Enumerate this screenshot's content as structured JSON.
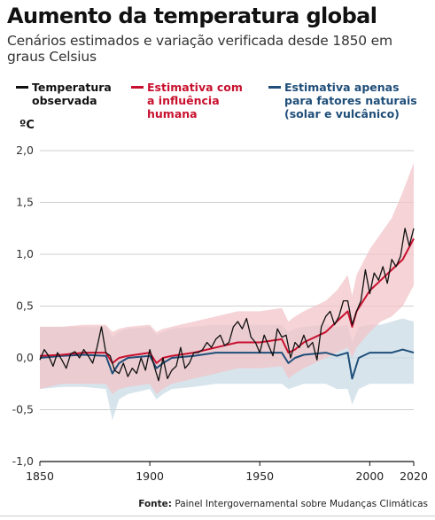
{
  "header": {
    "title": "Aumento da temperatura global",
    "subtitle": "Cenários estimados e variação verificada desde 1850 em graus Celsius"
  },
  "legend": [
    {
      "label": "Temperatura observada",
      "color": "#111111"
    },
    {
      "label": "Estimativa com a influência humana",
      "color": "#c8102e"
    },
    {
      "label": "Estimativa apenas para fatores naturais (solar e vulcânico)",
      "color": "#1f4e79"
    }
  ],
  "source": {
    "prefix": "Fonte:",
    "text": "Painel Intergovernamental sobre Mudanças Climáticas"
  },
  "colors": {
    "observed": "#111111",
    "human": "#c8102e",
    "human_band": "#f2c4c8",
    "natural": "#1f4e79",
    "natural_band": "#c9dbe6",
    "grid": "#cfcfcf"
  },
  "chart_data": {
    "type": "line",
    "ylabel": "ºC",
    "xlim": [
      1850,
      2020
    ],
    "ylim": [
      -1.0,
      2.0
    ],
    "x_ticks": [
      1850,
      1900,
      1950,
      2000,
      2020
    ],
    "y_ticks": [
      2.0,
      1.5,
      1.0,
      0.5,
      0.0,
      -0.5,
      -1.0
    ],
    "y_tick_labels": [
      "2,0",
      "1,5",
      "1,0",
      "0,5",
      "0,0",
      "-0,5",
      "-1,0"
    ],
    "grid": true,
    "legend_position": "top",
    "series": [
      {
        "name": "Temperatura observada",
        "x": [
          1850,
          1852,
          1854,
          1856,
          1858,
          1860,
          1862,
          1864,
          1866,
          1868,
          1870,
          1872,
          1874,
          1876,
          1878,
          1880,
          1882,
          1884,
          1886,
          1888,
          1890,
          1892,
          1894,
          1896,
          1898,
          1900,
          1902,
          1904,
          1906,
          1908,
          1910,
          1912,
          1914,
          1916,
          1918,
          1920,
          1922,
          1924,
          1926,
          1928,
          1930,
          1932,
          1934,
          1936,
          1938,
          1940,
          1942,
          1944,
          1946,
          1948,
          1950,
          1952,
          1954,
          1956,
          1958,
          1960,
          1962,
          1964,
          1966,
          1968,
          1970,
          1972,
          1974,
          1976,
          1978,
          1980,
          1982,
          1984,
          1986,
          1988,
          1990,
          1992,
          1994,
          1996,
          1998,
          2000,
          2002,
          2004,
          2006,
          2008,
          2010,
          2012,
          2014,
          2016,
          2018,
          2020
        ],
        "values": [
          -0.02,
          0.08,
          0.02,
          -0.08,
          0.05,
          -0.02,
          -0.1,
          0.04,
          0.06,
          0.0,
          0.08,
          0.02,
          -0.05,
          0.1,
          0.3,
          0.05,
          0.02,
          -0.12,
          -0.15,
          -0.05,
          -0.18,
          -0.1,
          -0.15,
          0.0,
          -0.12,
          0.08,
          -0.08,
          -0.22,
          0.0,
          -0.2,
          -0.12,
          -0.08,
          0.1,
          -0.1,
          -0.05,
          0.05,
          0.05,
          0.08,
          0.15,
          0.1,
          0.18,
          0.22,
          0.12,
          0.15,
          0.3,
          0.35,
          0.28,
          0.38,
          0.2,
          0.15,
          0.05,
          0.22,
          0.12,
          0.02,
          0.28,
          0.2,
          0.22,
          0.0,
          0.15,
          0.1,
          0.22,
          0.1,
          0.15,
          -0.02,
          0.3,
          0.4,
          0.45,
          0.32,
          0.4,
          0.55,
          0.55,
          0.32,
          0.45,
          0.55,
          0.85,
          0.62,
          0.82,
          0.75,
          0.88,
          0.72,
          0.95,
          0.88,
          0.98,
          1.25,
          1.08,
          1.25
        ]
      },
      {
        "name": "Estimativa com a influência humana",
        "x": [
          1850,
          1860,
          1870,
          1880,
          1883,
          1886,
          1890,
          1900,
          1903,
          1906,
          1910,
          1920,
          1930,
          1940,
          1950,
          1960,
          1963,
          1966,
          1970,
          1980,
          1985,
          1990,
          1992,
          1994,
          2000,
          2005,
          2010,
          2015,
          2020
        ],
        "values": [
          0.02,
          0.03,
          0.05,
          0.05,
          -0.05,
          0.0,
          0.02,
          0.05,
          -0.05,
          0.0,
          0.02,
          0.05,
          0.1,
          0.15,
          0.15,
          0.18,
          0.05,
          0.08,
          0.15,
          0.25,
          0.35,
          0.45,
          0.3,
          0.45,
          0.65,
          0.75,
          0.85,
          0.95,
          1.15
        ],
        "band_lower": [
          -0.3,
          -0.25,
          -0.25,
          -0.25,
          -0.35,
          -0.3,
          -0.28,
          -0.25,
          -0.35,
          -0.3,
          -0.25,
          -0.2,
          -0.15,
          -0.1,
          -0.1,
          -0.08,
          -0.2,
          -0.15,
          -0.1,
          0.0,
          0.05,
          0.1,
          0.0,
          0.1,
          0.25,
          0.35,
          0.4,
          0.5,
          0.7
        ],
        "band_upper": [
          0.3,
          0.3,
          0.32,
          0.32,
          0.25,
          0.28,
          0.3,
          0.32,
          0.25,
          0.28,
          0.3,
          0.35,
          0.4,
          0.45,
          0.45,
          0.48,
          0.35,
          0.4,
          0.45,
          0.55,
          0.65,
          0.8,
          0.6,
          0.8,
          1.05,
          1.2,
          1.35,
          1.6,
          1.88
        ]
      },
      {
        "name": "Estimativa apenas para fatores naturais (solar e vulcânico)",
        "x": [
          1850,
          1860,
          1870,
          1880,
          1883,
          1886,
          1890,
          1900,
          1903,
          1906,
          1910,
          1920,
          1930,
          1940,
          1950,
          1960,
          1963,
          1966,
          1970,
          1980,
          1985,
          1990,
          1992,
          1995,
          2000,
          2005,
          2010,
          2015,
          2020
        ],
        "values": [
          0.0,
          0.02,
          0.03,
          0.02,
          -0.15,
          -0.05,
          0.0,
          0.02,
          -0.1,
          -0.05,
          0.0,
          0.02,
          0.05,
          0.05,
          0.05,
          0.05,
          -0.05,
          0.0,
          0.03,
          0.05,
          0.02,
          0.05,
          -0.2,
          0.0,
          0.05,
          0.05,
          0.05,
          0.08,
          0.05
        ],
        "band_lower": [
          -0.3,
          -0.28,
          -0.28,
          -0.3,
          -0.6,
          -0.4,
          -0.35,
          -0.3,
          -0.4,
          -0.35,
          -0.3,
          -0.28,
          -0.25,
          -0.25,
          -0.25,
          -0.25,
          -0.3,
          -0.28,
          -0.25,
          -0.25,
          -0.3,
          -0.3,
          -0.45,
          -0.3,
          -0.25,
          -0.25,
          -0.25,
          -0.25,
          -0.25
        ],
        "band_upper": [
          0.3,
          0.3,
          0.3,
          0.3,
          0.2,
          0.25,
          0.28,
          0.3,
          0.22,
          0.25,
          0.28,
          0.3,
          0.32,
          0.32,
          0.32,
          0.32,
          0.25,
          0.28,
          0.3,
          0.32,
          0.3,
          0.32,
          0.15,
          0.3,
          0.32,
          0.32,
          0.35,
          0.38,
          0.35
        ]
      }
    ]
  }
}
